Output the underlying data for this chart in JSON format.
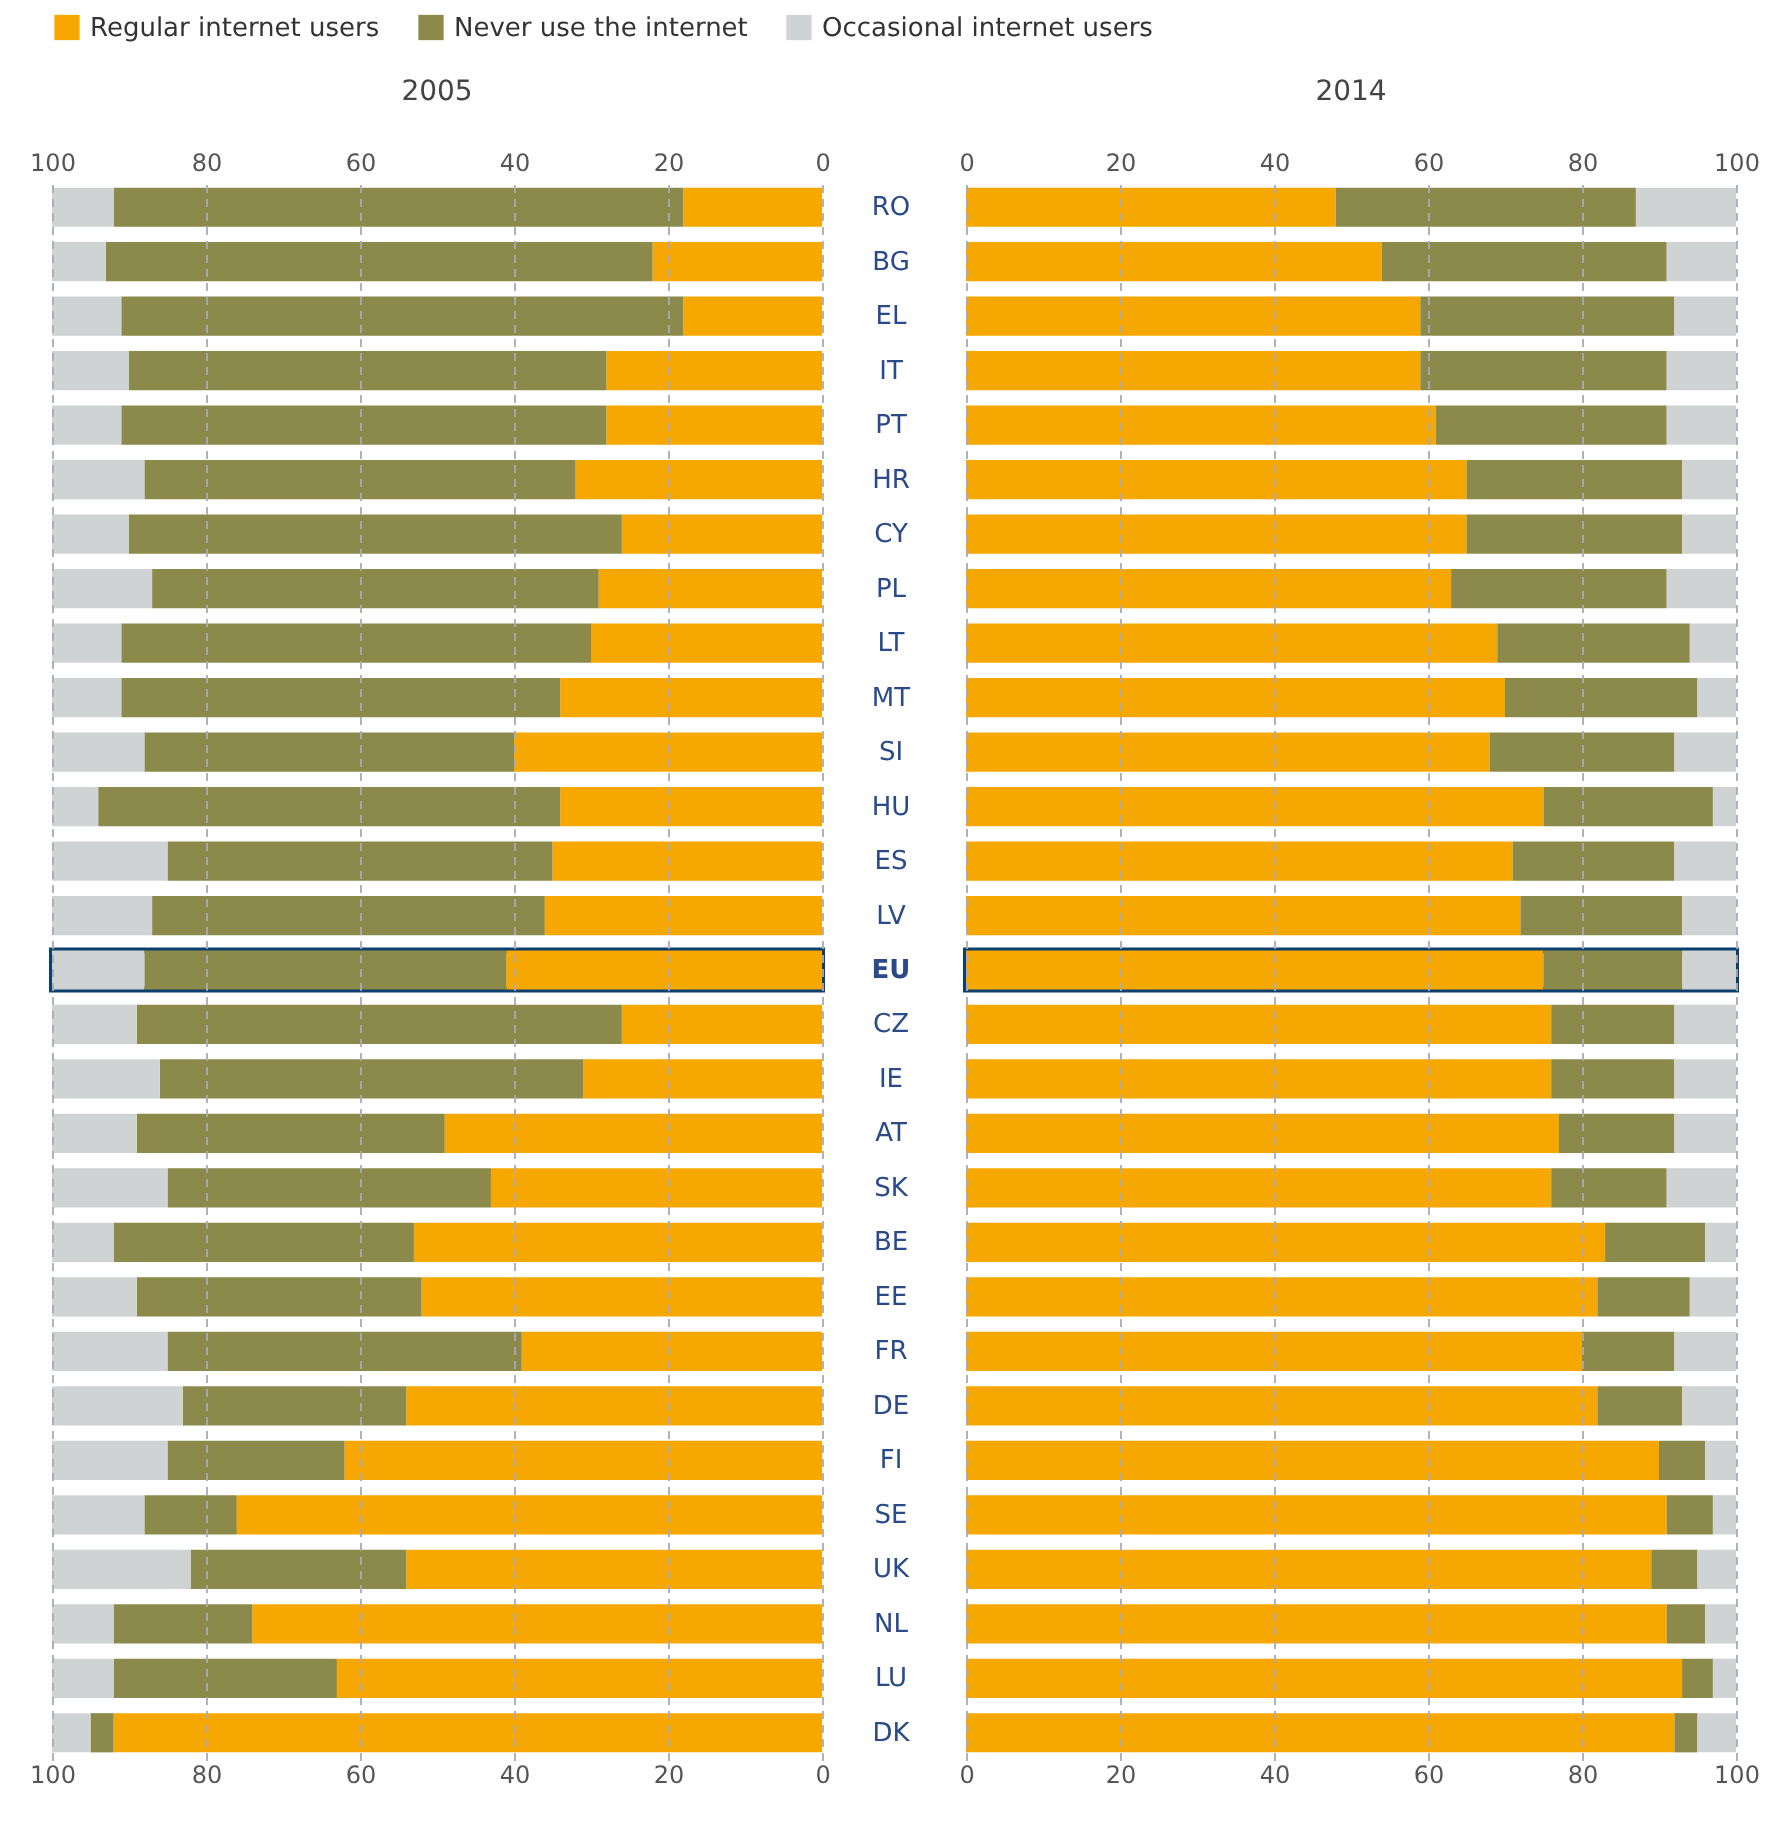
{
  "chart_data": [
    {
      "type": "bar",
      "title": "2005",
      "orientation": "horizontal",
      "stacked": true,
      "legend": "top",
      "grid": "x",
      "line_style": "dashed",
      "categories": [
        "RO",
        "BG",
        "EL",
        "IT",
        "PT",
        "HR",
        "CY",
        "PL",
        "LT",
        "MT",
        "SI",
        "HU",
        "ES",
        "LV",
        "EU",
        "CZ",
        "IE",
        "AT",
        "SK",
        "BE",
        "EE",
        "FR",
        "DE",
        "FI",
        "SE",
        "UK",
        "NL",
        "LU",
        "DK"
      ],
      "series": [
        {
          "name": "Regular internet users",
          "color": "#f7a800",
          "values": [
            18,
            22,
            18,
            28,
            28,
            32,
            26,
            29,
            30,
            34,
            40,
            34,
            35,
            36,
            41,
            26,
            31,
            49,
            43,
            53,
            52,
            39,
            54,
            62,
            76,
            54,
            74,
            63,
            92
          ]
        },
        {
          "name": "Never use the internet",
          "color": "#8c8a4a",
          "values": [
            74,
            71,
            73,
            62,
            63,
            56,
            64,
            58,
            61,
            57,
            48,
            60,
            50,
            51,
            47,
            63,
            55,
            40,
            42,
            39,
            37,
            46,
            29,
            23,
            12,
            28,
            18,
            29,
            3
          ]
        },
        {
          "name": "Occasional internet users",
          "color": "#d0d3d4",
          "values": [
            8,
            7,
            9,
            10,
            9,
            12,
            10,
            13,
            9,
            9,
            12,
            6,
            15,
            13,
            12,
            11,
            14,
            11,
            15,
            8,
            11,
            15,
            17,
            15,
            12,
            18,
            8,
            8,
            5
          ]
        }
      ],
      "xlim": [
        100,
        0
      ],
      "xticks": [
        100,
        80,
        60,
        40,
        20,
        0
      ],
      "x2lim": [
        100,
        0
      ],
      "x2ticks": [
        100,
        80,
        60,
        40,
        20,
        0
      ],
      "bands": [
        {
          "axis": "y",
          "from": "EU",
          "to": "EU",
          "color": "#0d3f6e"
        }
      ]
    },
    {
      "type": "bar",
      "title": "2014",
      "orientation": "horizontal",
      "stacked": true,
      "legend": "top",
      "grid": "x",
      "line_style": "dashed",
      "tick_labels": "x",
      "categories": [
        "RO",
        "BG",
        "EL",
        "IT",
        "PT",
        "HR",
        "CY",
        "PL",
        "LT",
        "MT",
        "SI",
        "HU",
        "ES",
        "LV",
        "EU",
        "CZ",
        "IE",
        "AT",
        "SK",
        "BE",
        "EE",
        "FR",
        "DE",
        "FI",
        "SE",
        "UK",
        "NL",
        "LU",
        "DK"
      ],
      "series": [
        {
          "name": "Regular internet users",
          "color": "#f7a800",
          "values": [
            48,
            54,
            59,
            59,
            61,
            65,
            65,
            63,
            69,
            70,
            68,
            75,
            71,
            72,
            75,
            76,
            76,
            77,
            76,
            83,
            82,
            80,
            82,
            90,
            91,
            89,
            91,
            93,
            92
          ]
        },
        {
          "name": "Never use the internet",
          "color": "#8c8a4a",
          "values": [
            39,
            37,
            33,
            32,
            30,
            28,
            28,
            28,
            25,
            25,
            24,
            22,
            21,
            21,
            18,
            16,
            16,
            15,
            15,
            13,
            12,
            12,
            11,
            6,
            6,
            6,
            5,
            4,
            3
          ]
        },
        {
          "name": "Occasional internet users",
          "color": "#d0d3d4",
          "values": [
            13,
            9,
            8,
            9,
            9,
            7,
            7,
            9,
            6,
            5,
            8,
            3,
            8,
            7,
            7,
            8,
            8,
            8,
            9,
            4,
            6,
            8,
            7,
            4,
            3,
            5,
            4,
            3,
            5
          ]
        }
      ],
      "xlim": [
        0,
        100
      ],
      "xticks": [
        0,
        20,
        40,
        60,
        80,
        100
      ],
      "x2lim": [
        0,
        100
      ],
      "x2ticks": [
        0,
        20,
        40,
        60,
        80,
        100
      ],
      "bands": [
        {
          "axis": "y",
          "from": "EU",
          "to": "EU",
          "color": "#0d3f6e"
        }
      ]
    }
  ]
}
